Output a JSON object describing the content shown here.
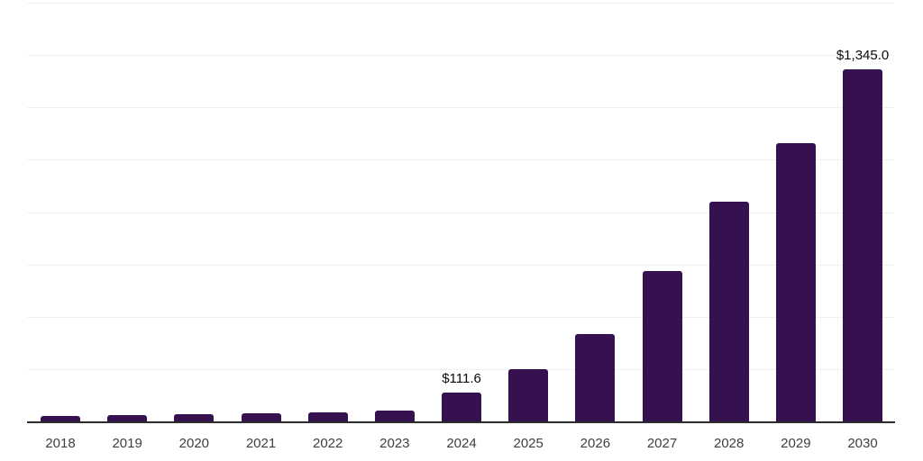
{
  "chart_data": {
    "type": "bar",
    "title": "",
    "xlabel": "",
    "ylabel": "",
    "categories": [
      "2018",
      "2019",
      "2020",
      "2021",
      "2022",
      "2023",
      "2024",
      "2025",
      "2026",
      "2027",
      "2028",
      "2029",
      "2030"
    ],
    "values": [
      20,
      23,
      28,
      31,
      35,
      42,
      111.6,
      200,
      335,
      575,
      840,
      1065,
      1345
    ],
    "data_labels": [
      "",
      "",
      "",
      "",
      "",
      "",
      "$111.6",
      "",
      "",
      "",
      "",
      "",
      "$1,345.0"
    ],
    "ylim": [
      0,
      1600
    ],
    "gridline_step": 200,
    "grid": true,
    "legend": false,
    "colors": {
      "bar": "#351150",
      "gridline": "#efefef",
      "axis": "#2b2b2b",
      "tick_label": "#3f3f3f",
      "data_label": "#0a0a0a",
      "background": "#ffffff"
    }
  }
}
